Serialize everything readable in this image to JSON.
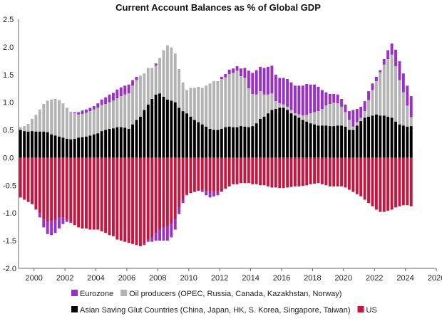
{
  "chart_data": {
    "type": "bar",
    "stacked": true,
    "title": "Current Account Balances as % of Global GDP",
    "xlabel": "",
    "ylabel": "",
    "ylim": [
      -2.0,
      2.5
    ],
    "y_ticks": [
      "2.5",
      "2.0",
      "1.5",
      "1.0",
      "0.5",
      "0.0",
      "-0.5",
      "-1.0",
      "-1.5",
      "-2.0"
    ],
    "y_tick_values": [
      2.5,
      2.0,
      1.5,
      1.0,
      0.5,
      0.0,
      -0.5,
      -1.0,
      -1.5,
      -2.0
    ],
    "xlim": [
      1999,
      2026
    ],
    "x_ticks": [
      "2000",
      "2002",
      "2004",
      "2006",
      "2008",
      "2010",
      "2012",
      "2014",
      "2016",
      "2018",
      "2020",
      "2022",
      "2024",
      "2026"
    ],
    "x_tick_values": [
      2000,
      2002,
      2004,
      2006,
      2008,
      2010,
      2012,
      2014,
      2016,
      2018,
      2020,
      2022,
      2024,
      2026
    ],
    "grid": false,
    "legend_position": "bottom",
    "x": [
      "1999 Q1",
      "1999 Q2",
      "1999 Q3",
      "1999 Q4",
      "2000 Q1",
      "2000 Q2",
      "2000 Q3",
      "2000 Q4",
      "2001 Q1",
      "2001 Q2",
      "2001 Q3",
      "2001 Q4",
      "2002 Q1",
      "2002 Q2",
      "2002 Q3",
      "2002 Q4",
      "2003 Q1",
      "2003 Q2",
      "2003 Q3",
      "2003 Q4",
      "2004 Q1",
      "2004 Q2",
      "2004 Q3",
      "2004 Q4",
      "2005 Q1",
      "2005 Q2",
      "2005 Q3",
      "2005 Q4",
      "2006 Q1",
      "2006 Q2",
      "2006 Q3",
      "2006 Q4",
      "2007 Q1",
      "2007 Q2",
      "2007 Q3",
      "2007 Q4",
      "2008 Q1",
      "2008 Q2",
      "2008 Q3",
      "2008 Q4",
      "2009 Q1",
      "2009 Q2",
      "2009 Q3",
      "2009 Q4",
      "2010 Q1",
      "2010 Q2",
      "2010 Q3",
      "2010 Q4",
      "2011 Q1",
      "2011 Q2",
      "2011 Q3",
      "2011 Q4",
      "2012 Q1",
      "2012 Q2",
      "2012 Q3",
      "2012 Q4",
      "2013 Q1",
      "2013 Q2",
      "2013 Q3",
      "2013 Q4",
      "2014 Q1",
      "2014 Q2",
      "2014 Q3",
      "2014 Q4",
      "2015 Q1",
      "2015 Q2",
      "2015 Q3",
      "2015 Q4",
      "2016 Q1",
      "2016 Q2",
      "2016 Q3",
      "2016 Q4",
      "2017 Q1",
      "2017 Q2",
      "2017 Q3",
      "2017 Q4",
      "2018 Q1",
      "2018 Q2",
      "2018 Q3",
      "2018 Q4",
      "2019 Q1",
      "2019 Q2",
      "2019 Q3",
      "2019 Q4",
      "2020 Q1",
      "2020 Q2",
      "2020 Q3",
      "2020 Q4",
      "2021 Q1",
      "2021 Q2",
      "2021 Q3",
      "2021 Q4",
      "2022 Q1",
      "2022 Q2",
      "2022 Q3",
      "2022 Q4",
      "2023 Q1",
      "2023 Q2",
      "2023 Q3",
      "2023 Q4",
      "2024 Q1",
      "2024 Q2"
    ],
    "positive_series": [
      {
        "name": "Asian Saving Glut Countries (China, Japan, HK, S. Korea, Singapore, Taiwan)",
        "color": "#000000",
        "values": [
          0.5,
          0.48,
          0.47,
          0.48,
          0.47,
          0.47,
          0.47,
          0.46,
          0.42,
          0.4,
          0.38,
          0.36,
          0.34,
          0.33,
          0.34,
          0.36,
          0.37,
          0.38,
          0.4,
          0.42,
          0.44,
          0.48,
          0.5,
          0.52,
          0.53,
          0.55,
          0.55,
          0.54,
          0.52,
          0.6,
          0.68,
          0.74,
          0.86,
          0.96,
          1.06,
          1.14,
          1.16,
          1.1,
          1.05,
          1.03,
          1.0,
          0.9,
          0.84,
          0.8,
          0.74,
          0.68,
          0.64,
          0.6,
          0.56,
          0.52,
          0.5,
          0.5,
          0.52,
          0.55,
          0.56,
          0.55,
          0.55,
          0.57,
          0.56,
          0.55,
          0.57,
          0.62,
          0.7,
          0.74,
          0.8,
          0.86,
          0.88,
          0.9,
          0.9,
          0.86,
          0.8,
          0.76,
          0.72,
          0.68,
          0.65,
          0.62,
          0.6,
          0.58,
          0.58,
          0.58,
          0.57,
          0.57,
          0.58,
          0.58,
          0.56,
          0.5,
          0.5,
          0.58,
          0.66,
          0.72,
          0.74,
          0.76,
          0.78,
          0.76,
          0.76,
          0.74,
          0.72,
          0.65,
          0.6,
          0.58,
          0.56,
          0.57
        ]
      },
      {
        "name": "Oil producers (OPEC, Russia, Canada, Kazakhstan, Norway)",
        "color": "#b3b3b3",
        "values": [
          0.05,
          0.09,
          0.14,
          0.22,
          0.3,
          0.4,
          0.5,
          0.57,
          0.63,
          0.66,
          0.66,
          0.62,
          0.56,
          0.5,
          0.46,
          0.42,
          0.42,
          0.43,
          0.44,
          0.45,
          0.46,
          0.47,
          0.47,
          0.48,
          0.5,
          0.52,
          0.56,
          0.6,
          0.64,
          0.7,
          0.72,
          0.74,
          0.66,
          0.66,
          0.56,
          0.52,
          0.64,
          0.84,
          0.98,
          0.96,
          0.88,
          0.7,
          0.52,
          0.42,
          0.52,
          0.58,
          0.64,
          0.66,
          0.74,
          0.82,
          0.88,
          0.88,
          0.9,
          0.9,
          0.95,
          0.98,
          1.02,
          0.9,
          0.88,
          0.7,
          0.58,
          0.52,
          0.5,
          0.4,
          0.34,
          0.3,
          0.14,
          0.08,
          0.06,
          0.06,
          0.06,
          0.04,
          0.06,
          0.08,
          0.12,
          0.18,
          0.22,
          0.26,
          0.3,
          0.36,
          0.4,
          0.42,
          0.4,
          0.34,
          0.26,
          0.18,
          0.06,
          0.06,
          0.06,
          0.12,
          0.3,
          0.46,
          0.6,
          0.78,
          0.92,
          1.04,
          1.14,
          1.0,
          0.8,
          0.6,
          0.38,
          0.16
        ]
      },
      {
        "name": "Eurozone",
        "color": "#9b30c8",
        "values": [
          0.0,
          0.0,
          0.0,
          0.0,
          0.0,
          0.0,
          0.0,
          0.0,
          0.0,
          0.0,
          0.0,
          0.0,
          0.0,
          0.0,
          0.02,
          0.04,
          0.06,
          0.06,
          0.06,
          0.06,
          0.08,
          0.1,
          0.12,
          0.14,
          0.14,
          0.16,
          0.16,
          0.16,
          0.16,
          0.1,
          0.06,
          0.0,
          0.0,
          0.0,
          0.0,
          0.04,
          0.0,
          0.0,
          0.0,
          0.0,
          0.0,
          0.0,
          0.0,
          0.0,
          0.0,
          0.0,
          0.0,
          0.0,
          0.0,
          0.0,
          0.0,
          0.0,
          0.04,
          0.06,
          0.08,
          0.08,
          0.08,
          0.14,
          0.18,
          0.32,
          0.38,
          0.44,
          0.44,
          0.48,
          0.5,
          0.5,
          0.48,
          0.46,
          0.48,
          0.5,
          0.5,
          0.5,
          0.52,
          0.54,
          0.56,
          0.52,
          0.5,
          0.44,
          0.34,
          0.24,
          0.18,
          0.16,
          0.16,
          0.14,
          0.14,
          0.16,
          0.3,
          0.24,
          0.2,
          0.18,
          0.16,
          0.12,
          0.08,
          0.04,
          0.1,
          0.16,
          0.2,
          0.3,
          0.34,
          0.34,
          0.36,
          0.38
        ]
      }
    ],
    "negative_series": [
      {
        "name": "US",
        "color": "#c8153f",
        "values": [
          -0.72,
          -0.76,
          -0.8,
          -0.84,
          -0.92,
          -1.0,
          -1.1,
          -1.16,
          -1.14,
          -1.12,
          -1.08,
          -1.08,
          -1.1,
          -1.16,
          -1.22,
          -1.26,
          -1.28,
          -1.28,
          -1.3,
          -1.3,
          -1.3,
          -1.33,
          -1.36,
          -1.4,
          -1.42,
          -1.48,
          -1.5,
          -1.52,
          -1.54,
          -1.56,
          -1.58,
          -1.6,
          -1.56,
          -1.48,
          -1.44,
          -1.36,
          -1.3,
          -1.26,
          -1.24,
          -1.2,
          -1.1,
          -0.9,
          -0.76,
          -0.66,
          -0.64,
          -0.62,
          -0.6,
          -0.58,
          -0.6,
          -0.62,
          -0.62,
          -0.62,
          -0.6,
          -0.56,
          -0.52,
          -0.48,
          -0.48,
          -0.46,
          -0.46,
          -0.46,
          -0.48,
          -0.48,
          -0.5,
          -0.5,
          -0.52,
          -0.54,
          -0.54,
          -0.55,
          -0.55,
          -0.54,
          -0.53,
          -0.52,
          -0.52,
          -0.51,
          -0.5,
          -0.48,
          -0.47,
          -0.46,
          -0.48,
          -0.5,
          -0.52,
          -0.52,
          -0.52,
          -0.52,
          -0.54,
          -0.58,
          -0.62,
          -0.66,
          -0.7,
          -0.76,
          -0.82,
          -0.88,
          -0.94,
          -0.98,
          -0.98,
          -0.96,
          -0.94,
          -0.9,
          -0.88,
          -0.86,
          -0.86,
          -0.88
        ]
      }
    ],
    "negative_overlay": [
      {
        "name": "Eurozone",
        "color": "#9b30c8",
        "values": [
          0,
          0,
          0,
          0,
          -0.02,
          -0.08,
          -0.16,
          -0.22,
          -0.26,
          -0.24,
          -0.2,
          -0.12,
          -0.06,
          -0.02,
          0,
          0,
          0,
          0,
          0,
          0,
          0,
          0,
          0,
          0,
          0,
          0,
          0,
          0,
          0,
          0,
          0,
          0,
          -0.02,
          -0.04,
          -0.08,
          -0.14,
          -0.2,
          -0.24,
          -0.26,
          -0.24,
          -0.2,
          -0.12,
          -0.06,
          -0.02,
          0,
          0,
          0,
          -0.04,
          -0.08,
          -0.1,
          -0.08,
          -0.06,
          -0.02,
          0,
          0,
          0,
          0,
          0,
          0,
          0,
          0,
          0,
          0,
          0,
          0,
          0,
          0,
          0,
          0,
          0,
          0,
          0,
          0,
          0,
          0,
          0,
          0,
          0,
          0,
          0,
          0,
          0,
          0,
          0,
          0,
          0,
          0,
          0,
          0,
          0,
          0,
          0,
          0,
          0,
          0,
          0,
          0,
          0,
          0,
          0,
          0,
          0
        ]
      }
    ],
    "legend": [
      {
        "label": "Eurozone",
        "color": "#9b30c8"
      },
      {
        "label": "Oil producers (OPEC, Russia, Canada, Kazakhstan, Norway)",
        "color": "#b3b3b3"
      },
      {
        "label": "Asian Saving Glut Countries (China, Japan, HK, S. Korea, Singapore, Taiwan)",
        "color": "#000000"
      },
      {
        "label": "US",
        "color": "#c8153f"
      }
    ]
  }
}
